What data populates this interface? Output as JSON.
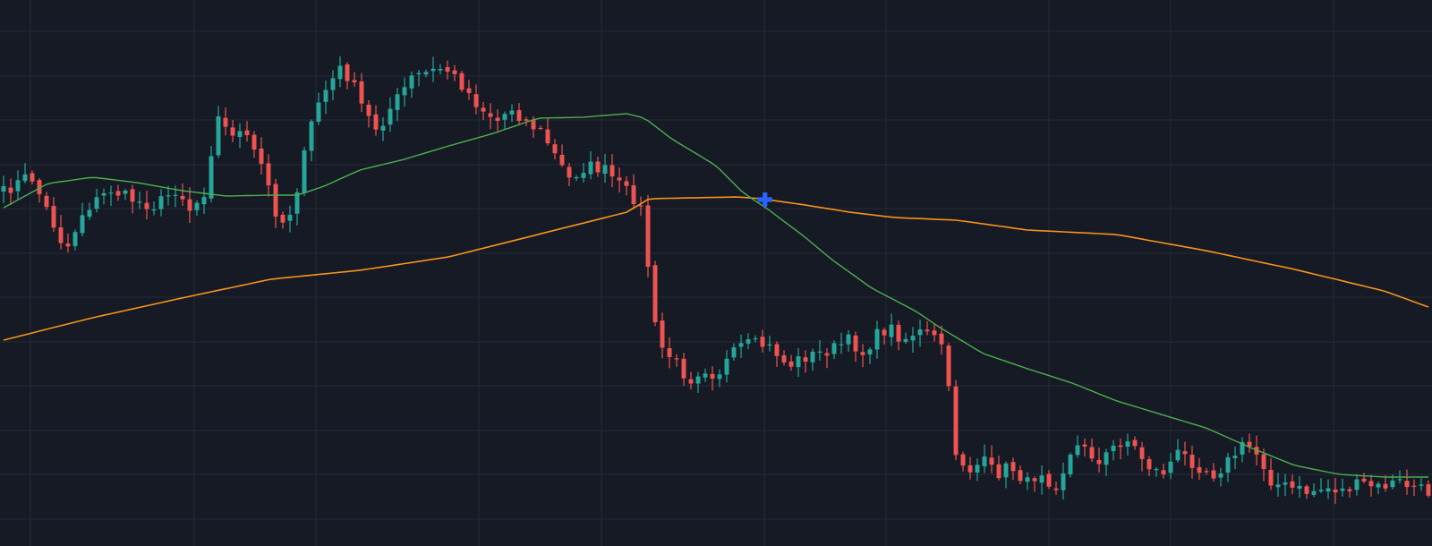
{
  "chart_data": {
    "type": "candlestick",
    "title": "",
    "xlabel": "",
    "ylabel": "",
    "grid": true,
    "legend": "none",
    "candle_count": 200,
    "ylim": [
      0,
      610
    ],
    "colors": {
      "background": "#161a25",
      "grid": "#262b39",
      "up": "#26a69a",
      "down": "#ef5350",
      "ma_fast": "#4caf50",
      "ma_slow": "#f7931a",
      "marker": "#2962ff"
    },
    "price_anchors": [
      [
        0,
        215
      ],
      [
        6,
        195
      ],
      [
        11,
        248
      ],
      [
        14,
        280
      ],
      [
        18,
        235
      ],
      [
        24,
        212
      ],
      [
        30,
        225
      ],
      [
        34,
        230
      ],
      [
        39,
        210
      ],
      [
        42,
        235
      ],
      [
        45,
        215
      ],
      [
        48,
        130
      ],
      [
        50,
        145
      ],
      [
        54,
        150
      ],
      [
        58,
        185
      ],
      [
        61,
        235
      ],
      [
        63,
        250
      ],
      [
        65,
        230
      ],
      [
        70,
        120
      ],
      [
        73,
        95
      ],
      [
        76,
        75
      ],
      [
        79,
        100
      ],
      [
        81,
        125
      ],
      [
        84,
        145
      ],
      [
        87,
        120
      ],
      [
        92,
        85
      ],
      [
        96,
        80
      ],
      [
        99,
        75
      ],
      [
        103,
        95
      ],
      [
        107,
        120
      ],
      [
        111,
        135
      ],
      [
        114,
        120
      ],
      [
        117,
        135
      ],
      [
        121,
        148
      ],
      [
        124,
        175
      ],
      [
        127,
        200
      ],
      [
        131,
        185
      ],
      [
        135,
        190
      ],
      [
        139,
        210
      ],
      [
        141,
        218
      ],
      [
        143,
        230
      ],
      [
        144,
        260
      ],
      [
        146,
        360
      ],
      [
        148,
        390
      ],
      [
        151,
        405
      ],
      [
        154,
        425
      ],
      [
        157,
        410
      ],
      [
        160,
        420
      ],
      [
        163,
        400
      ],
      [
        166,
        385
      ],
      [
        170,
        385
      ],
      [
        173,
        390
      ],
      [
        176,
        410
      ],
      [
        179,
        400
      ],
      [
        183,
        395
      ],
      [
        186,
        390
      ],
      [
        190,
        380
      ],
      [
        193,
        395
      ],
      [
        196,
        375
      ],
      [
        199,
        365
      ],
      [
        202,
        380
      ],
      [
        205,
        370
      ],
      [
        208,
        375
      ],
      [
        211,
        385
      ],
      [
        214,
        510
      ],
      [
        217,
        525
      ],
      [
        220,
        515
      ],
      [
        223,
        530
      ],
      [
        226,
        520
      ],
      [
        230,
        540
      ],
      [
        233,
        525
      ],
      [
        236,
        545
      ],
      [
        240,
        505
      ],
      [
        243,
        495
      ],
      [
        246,
        520
      ],
      [
        249,
        500
      ],
      [
        252,
        490
      ],
      [
        254,
        500
      ],
      [
        257,
        520
      ],
      [
        260,
        530
      ],
      [
        264,
        505
      ],
      [
        268,
        520
      ],
      [
        272,
        530
      ],
      [
        276,
        510
      ],
      [
        279,
        495
      ],
      [
        282,
        510
      ],
      [
        285,
        540
      ],
      [
        289,
        545
      ],
      [
        293,
        550
      ],
      [
        297,
        545
      ],
      [
        301,
        548
      ],
      [
        305,
        540
      ],
      [
        309,
        545
      ],
      [
        313,
        538
      ],
      [
        317,
        545
      ],
      [
        320,
        550
      ]
    ],
    "ma_fast_anchors": [
      [
        0,
        232
      ],
      [
        10,
        205
      ],
      [
        20,
        198
      ],
      [
        30,
        204
      ],
      [
        40,
        213
      ],
      [
        50,
        219
      ],
      [
        60,
        218
      ],
      [
        66,
        218
      ],
      [
        72,
        208
      ],
      [
        80,
        190
      ],
      [
        90,
        178
      ],
      [
        100,
        163
      ],
      [
        110,
        149
      ],
      [
        120,
        132
      ],
      [
        130,
        131
      ],
      [
        140,
        127
      ],
      [
        144,
        132
      ],
      [
        150,
        155
      ],
      [
        160,
        185
      ],
      [
        166,
        215
      ],
      [
        172,
        235
      ],
      [
        180,
        265
      ],
      [
        186,
        290
      ],
      [
        195,
        322
      ],
      [
        205,
        348
      ],
      [
        210,
        365
      ],
      [
        220,
        395
      ],
      [
        230,
        412
      ],
      [
        240,
        428
      ],
      [
        250,
        448
      ],
      [
        260,
        463
      ],
      [
        270,
        478
      ],
      [
        280,
        500
      ],
      [
        290,
        520
      ],
      [
        300,
        530
      ],
      [
        310,
        533
      ],
      [
        320,
        533
      ]
    ],
    "ma_slow_anchors": [
      [
        0,
        380
      ],
      [
        20,
        355
      ],
      [
        40,
        333
      ],
      [
        60,
        312
      ],
      [
        80,
        302
      ],
      [
        100,
        287
      ],
      [
        120,
        262
      ],
      [
        140,
        237
      ],
      [
        145,
        222
      ],
      [
        155,
        221
      ],
      [
        165,
        220
      ],
      [
        170,
        222
      ],
      [
        180,
        229
      ],
      [
        190,
        237
      ],
      [
        200,
        243
      ],
      [
        214,
        246
      ],
      [
        230,
        257
      ],
      [
        250,
        262
      ],
      [
        270,
        280
      ],
      [
        290,
        301
      ],
      [
        310,
        325
      ],
      [
        320,
        343
      ]
    ],
    "crossover_marker": {
      "index": 171,
      "value": 223
    }
  }
}
